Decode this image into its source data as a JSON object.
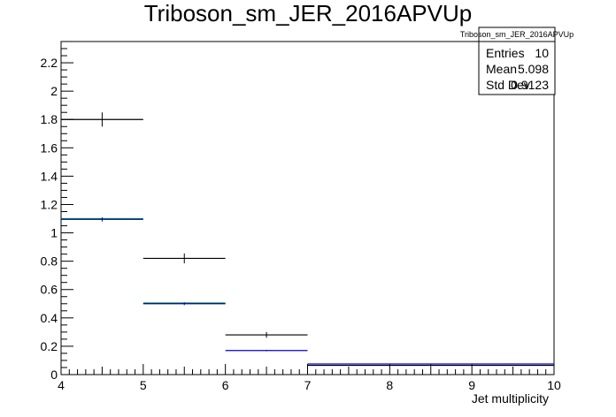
{
  "chart_data": {
    "type": "histogram",
    "title": "Triboson_sm_JER_2016APVUp",
    "xlabel": "Jet multiplicity",
    "ylabel": "",
    "xlim": [
      4,
      10
    ],
    "ylim": [
      0,
      2.35
    ],
    "x_ticks": [
      4,
      5,
      6,
      7,
      8,
      9,
      10
    ],
    "y_ticks": [
      0,
      0.2,
      0.4,
      0.6,
      0.8,
      1,
      1.2,
      1.4,
      1.6,
      1.8,
      2,
      2.2
    ],
    "grid": false,
    "series": [
      {
        "color": "#000000",
        "bins": [
          {
            "x0": 4,
            "x1": 5,
            "y": 1.8,
            "err": 0.05
          },
          {
            "x0": 5,
            "x1": 6,
            "y": 0.82,
            "err": 0.035
          },
          {
            "x0": 6,
            "x1": 7,
            "y": 0.28,
            "err": 0.02
          },
          {
            "x0": 7,
            "x1": 10,
            "y": 0.065,
            "err": 0.008
          }
        ]
      },
      {
        "color": "#009900",
        "bins": [
          {
            "x0": 4,
            "x1": 5,
            "y": 1.1
          },
          {
            "x0": 5,
            "x1": 6,
            "y": 0.505
          }
        ]
      },
      {
        "color": "#0000cc",
        "bins": [
          {
            "x0": 4,
            "x1": 5,
            "y": 1.095,
            "err": 0.015
          },
          {
            "x0": 5,
            "x1": 6,
            "y": 0.5,
            "err": 0.01
          },
          {
            "x0": 6,
            "x1": 7,
            "y": 0.17,
            "err": 0.005
          },
          {
            "x0": 7,
            "x1": 10,
            "y": 0.075,
            "err": 0.003
          }
        ]
      }
    ],
    "stats": {
      "title": "Triboson_sm_JER_2016APVUp",
      "rows": [
        {
          "label": "Entries",
          "value": "10"
        },
        {
          "label": "Mean",
          "value": "5.098"
        },
        {
          "label": "Std Dev",
          "value": "0.9123"
        }
      ]
    }
  }
}
